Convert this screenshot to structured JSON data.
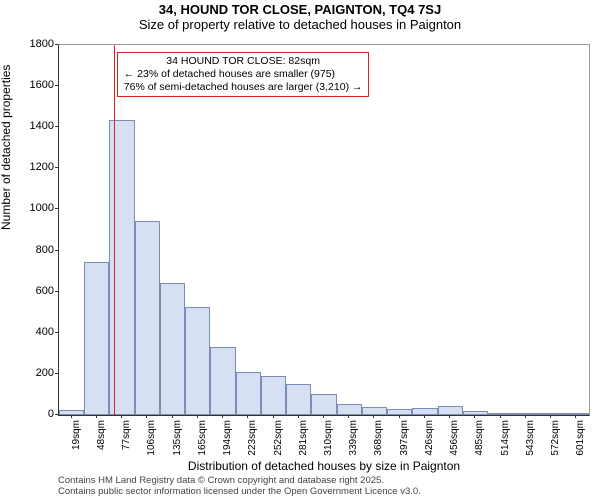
{
  "titles": {
    "line1": "34, HOUND TOR CLOSE, PAIGNTON, TQ4 7SJ",
    "line2": "Size of property relative to detached houses in Paignton"
  },
  "chart": {
    "type": "histogram",
    "xlabel": "Distribution of detached houses by size in Paignton",
    "ylabel": "Number of detached properties",
    "ylim": [
      0,
      1800
    ],
    "ytick_step": 200,
    "bar_color": "#d6e0f2",
    "bar_border_color": "#7a8db5",
    "background_color": "#ffffff",
    "label_fontsize": 12,
    "tick_fontsize": 11,
    "xtick_fontsize": 10,
    "marker_line_color": "#d22",
    "marker_x_category_index": 2,
    "categories": [
      "19sqm",
      "48sqm",
      "77sqm",
      "106sqm",
      "135sqm",
      "165sqm",
      "194sqm",
      "223sqm",
      "252sqm",
      "281sqm",
      "310sqm",
      "339sqm",
      "368sqm",
      "397sqm",
      "426sqm",
      "456sqm",
      "485sqm",
      "514sqm",
      "543sqm",
      "572sqm",
      "601sqm"
    ],
    "values": [
      25,
      745,
      1435,
      945,
      640,
      525,
      330,
      210,
      190,
      150,
      100,
      55,
      40,
      30,
      35,
      45,
      18,
      12,
      5,
      3,
      2
    ]
  },
  "annotation": {
    "line1": "34 HOUND TOR CLOSE: 82sqm",
    "line2": "← 23% of detached houses are smaller (975)",
    "line3": "76% of semi-detached houses are larger (3,210) →"
  },
  "attribution": {
    "line1": "Contains HM Land Registry data © Crown copyright and database right 2025.",
    "line2": "Contains public sector information licensed under the Open Government Licence v3.0."
  }
}
